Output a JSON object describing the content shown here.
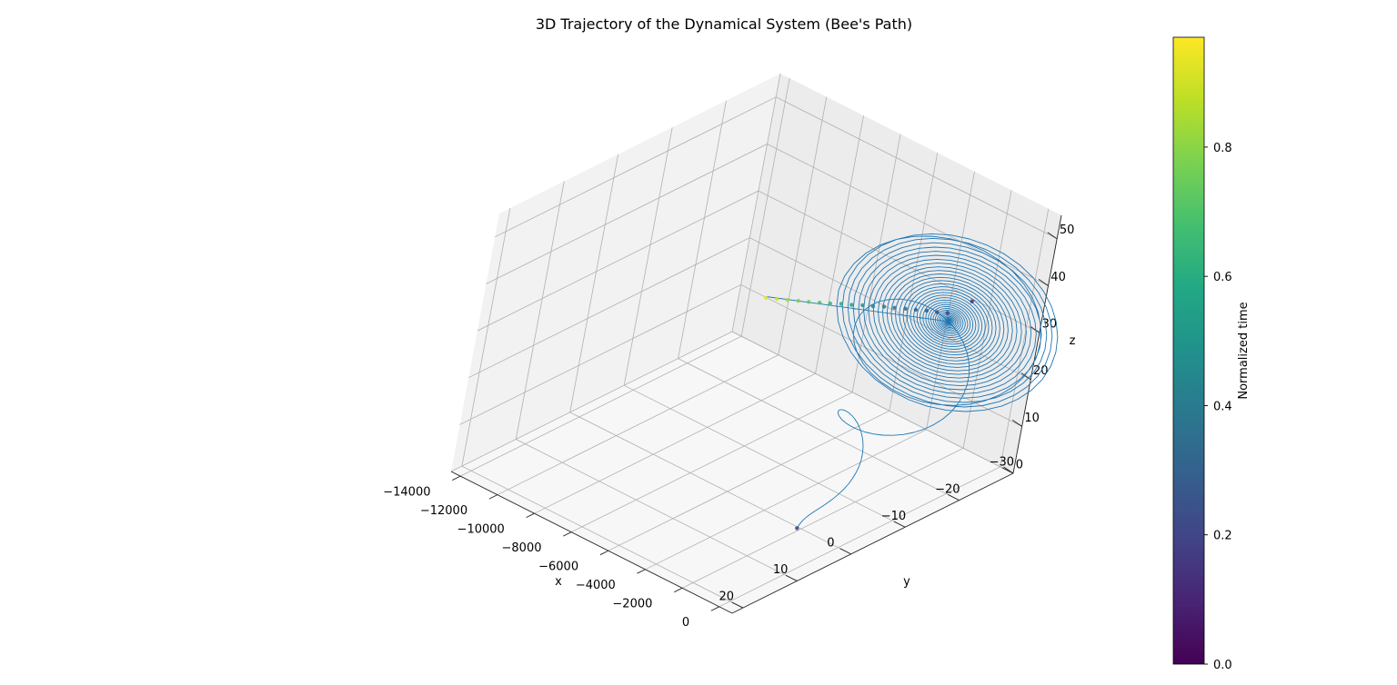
{
  "chart_data": {
    "type": "line",
    "projection": "3d",
    "title": "3D Trajectory of the Dynamical System (Bee's Path)",
    "xlabel": "x",
    "ylabel": "y",
    "zlabel": "z",
    "xlim": [
      -14500,
      700
    ],
    "ylim": [
      -30,
      22
    ],
    "zlim": [
      0,
      55
    ],
    "x_ticks": [
      0,
      -2000,
      -4000,
      -6000,
      -8000,
      -10000,
      -12000,
      -14000
    ],
    "y_ticks": [
      -30,
      -20,
      -10,
      0,
      10,
      20
    ],
    "z_ticks": [
      0,
      10,
      20,
      30,
      40,
      50
    ],
    "x_tick_labels": [
      "0",
      "−2000",
      "−4000",
      "−6000",
      "−8000",
      "−10000",
      "−12000",
      "−14000"
    ],
    "y_tick_labels": [
      "−30",
      "−20",
      "−10",
      "0",
      "10",
      "20"
    ],
    "z_tick_labels": [
      "0",
      "10",
      "20",
      "30",
      "40",
      "50"
    ],
    "grid": true,
    "line_color": "#1f77b4",
    "colorbar": {
      "label": "Normalized time",
      "colormap": "viridis",
      "range": [
        0.0,
        0.97
      ],
      "ticks": [
        0.0,
        0.2,
        0.4,
        0.6,
        0.8
      ],
      "tick_labels": [
        "0.0",
        "0.2",
        "0.4",
        "0.6",
        "0.8"
      ]
    },
    "trajectory": {
      "description": "spiral converging toward a fixed point, followed by a straight drift segment",
      "start": {
        "x": -1000,
        "y": 5,
        "z": 5
      },
      "spiral_center": {
        "x": -500,
        "y": -16,
        "z": 38
      },
      "spiral_turns": 40,
      "drift_end": {
        "x": -9500,
        "y": -15,
        "z": 26
      }
    },
    "time_markers": {
      "colormap": "viridis",
      "points": [
        {
          "x": -1000,
          "y": 5,
          "z": 5,
          "t": 0.18
        },
        {
          "x": -500,
          "y": -20,
          "z": 40,
          "t": 0.15
        },
        {
          "x": -1000,
          "y": -17.5,
          "z": 38,
          "t": 0.2
        },
        {
          "x": -1500,
          "y": -17.4,
          "z": 37.2,
          "t": 0.23
        },
        {
          "x": -2000,
          "y": -17.3,
          "z": 36.6,
          "t": 0.26
        },
        {
          "x": -2500,
          "y": -17.1,
          "z": 35.9,
          "t": 0.29
        },
        {
          "x": -3000,
          "y": -17.0,
          "z": 35.2,
          "t": 0.33
        },
        {
          "x": -3500,
          "y": -16.8,
          "z": 34.5,
          "t": 0.37
        },
        {
          "x": -4000,
          "y": -16.7,
          "z": 33.8,
          "t": 0.41
        },
        {
          "x": -4500,
          "y": -16.5,
          "z": 33.0,
          "t": 0.45
        },
        {
          "x": -5000,
          "y": -16.4,
          "z": 32.3,
          "t": 0.5
        },
        {
          "x": -5500,
          "y": -16.2,
          "z": 31.5,
          "t": 0.55
        },
        {
          "x": -6000,
          "y": -16.1,
          "z": 30.8,
          "t": 0.6
        },
        {
          "x": -6500,
          "y": -15.9,
          "z": 30.0,
          "t": 0.65
        },
        {
          "x": -7000,
          "y": -15.8,
          "z": 29.2,
          "t": 0.7
        },
        {
          "x": -7500,
          "y": -15.6,
          "z": 28.5,
          "t": 0.75
        },
        {
          "x": -8000,
          "y": -15.5,
          "z": 27.8,
          "t": 0.8
        },
        {
          "x": -8500,
          "y": -15.3,
          "z": 27.1,
          "t": 0.86
        },
        {
          "x": -9000,
          "y": -15.2,
          "z": 26.4,
          "t": 0.92
        },
        {
          "x": -9500,
          "y": -15.0,
          "z": 25.7,
          "t": 0.97
        }
      ]
    }
  }
}
